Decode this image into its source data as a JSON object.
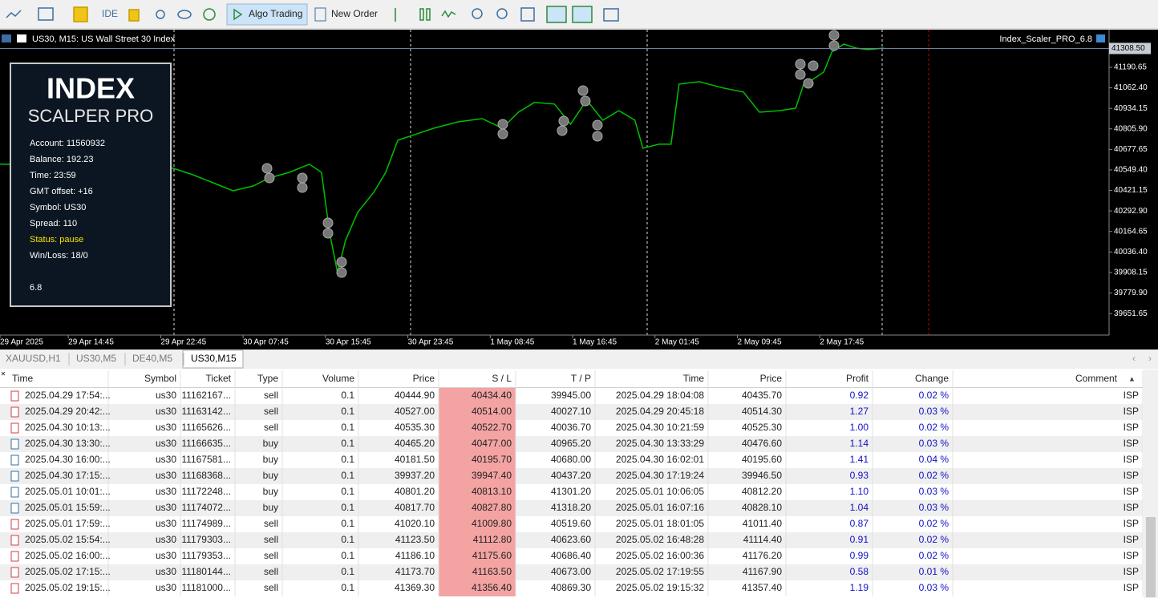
{
  "toolbar": {
    "items": [
      "IDE",
      "Algo Trading",
      "New Order"
    ]
  },
  "chart": {
    "title": "US30, M15:  US Wall Street 30 Index",
    "indicator": "Index_Scaler_PRO_6.8",
    "panel": {
      "logo_line1": "INDEX",
      "logo_line2": "SCALPER PRO",
      "lines": [
        "Account: 11560932",
        "Balance: 192.23",
        "Time: 23:59",
        "GMT offset: +16",
        "Symbol: US30",
        "Spread: 110",
        "Status: pause",
        "Win/Loss: 18/0"
      ],
      "version": "6.8"
    }
  },
  "chart_data": {
    "type": "line",
    "color": "#00c000",
    "x": [
      0,
      21.5,
      24,
      26.5,
      29,
      31.5,
      33.5,
      36,
      38.5,
      40,
      41,
      42,
      43,
      44.5,
      46.5,
      48,
      49.5,
      51,
      54,
      57,
      60,
      62.5,
      64.5,
      66.5,
      69,
      71,
      73,
      75,
      77,
      79,
      80,
      82,
      83.5,
      84.5,
      87,
      90,
      92.5,
      94.5,
      97,
      99,
      100,
      101,
      102.5,
      103.5,
      105,
      106.5,
      108,
      110
    ],
    "values": [
      40585,
      40560,
      40519,
      40469,
      40419,
      40449,
      40499,
      40534,
      40585,
      40534,
      40159,
      39908,
      40109,
      40284,
      40409,
      40534,
      40735,
      40760,
      40810,
      40850,
      40870,
      40810,
      40910,
      40971,
      40961,
      40835,
      40986,
      40860,
      40920,
      40860,
      40685,
      40710,
      40710,
      41086,
      41101,
      41061,
      41036,
      40910,
      40920,
      40935,
      41086,
      41111,
      41161,
      41286,
      41336,
      41311,
      41301,
      41311
    ],
    "xlim": [
      0,
      138
    ],
    "xticks": [
      {
        "value": 0,
        "label": "29 Apr 2025"
      },
      {
        "value": 8.5,
        "label": "29 Apr 14:45"
      },
      {
        "value": 20,
        "label": "29 Apr 22:45"
      },
      {
        "value": 30.25,
        "label": "30 Apr 07:45"
      },
      {
        "value": 40.5,
        "label": "30 Apr 15:45"
      },
      {
        "value": 50.75,
        "label": "30 Apr 23:45"
      },
      {
        "value": 61,
        "label": "1 May 08:45"
      },
      {
        "value": 71.25,
        "label": "1 May 16:45"
      },
      {
        "value": 81.5,
        "label": "2 May 01:45"
      },
      {
        "value": 91.75,
        "label": "2 May 09:45"
      },
      {
        "value": 102,
        "label": "2 May 17:45"
      }
    ],
    "ylim": [
      39517,
      41426
    ],
    "yticks": [
      41190.65,
      {
        "value": 41062.4,
        "label": "41062.40"
      },
      40934.15,
      {
        "value": 40805.9,
        "label": "40805.90"
      },
      40677.65,
      {
        "value": 40549.4,
        "label": "40549.40"
      },
      40421.15,
      {
        "value": 40292.9,
        "label": "40292.90"
      },
      40164.65,
      {
        "value": 40036.4,
        "label": "40036.40"
      },
      39908.15,
      {
        "value": 39779.9,
        "label": "39779.90"
      },
      39651.65
    ],
    "last_price": {
      "value": 41308.5,
      "label": "41308.50"
    }
  },
  "tabs": {
    "items": [
      "XAUUSD,H1",
      "US30,M5",
      "DE40,M5",
      "US30,M15"
    ]
  },
  "table": {
    "columns": [
      "Time",
      "Symbol",
      "Ticket",
      "Type",
      "Volume",
      "Price",
      "S / L",
      "T / P",
      "Time",
      "Price",
      "Profit",
      "Change",
      "Comment"
    ],
    "sort_indicator": "▲",
    "rows": [
      [
        "2025.04.29 17:54:...",
        "us30",
        "11162167...",
        "sell",
        "0.1",
        "40444.90",
        "40434.40",
        "39945.00",
        "2025.04.29 18:04:08",
        "40435.70",
        "0.92",
        "0.02 %",
        "ISP"
      ],
      [
        "2025.04.29 20:42:...",
        "us30",
        "11163142...",
        "sell",
        "0.1",
        "40527.00",
        "40514.00",
        "40027.10",
        "2025.04.29 20:45:18",
        "40514.30",
        "1.27",
        "0.03 %",
        "ISP"
      ],
      [
        "2025.04.30 10:13:...",
        "us30",
        "11165626...",
        "sell",
        "0.1",
        "40535.30",
        "40522.70",
        "40036.70",
        "2025.04.30 10:21:59",
        "40525.30",
        "1.00",
        "0.02 %",
        "ISP"
      ],
      [
        "2025.04.30 13:30:...",
        "us30",
        "11166635...",
        "buy",
        "0.1",
        "40465.20",
        "40477.00",
        "40965.20",
        "2025.04.30 13:33:29",
        "40476.60",
        "1.14",
        "0.03 %",
        "ISP"
      ],
      [
        "2025.04.30 16:00:...",
        "us30",
        "11167581...",
        "buy",
        "0.1",
        "40181.50",
        "40195.70",
        "40680.00",
        "2025.04.30 16:02:01",
        "40195.60",
        "1.41",
        "0.04 %",
        "ISP"
      ],
      [
        "2025.04.30 17:15:...",
        "us30",
        "11168368...",
        "buy",
        "0.1",
        "39937.20",
        "39947.40",
        "40437.20",
        "2025.04.30 17:19:24",
        "39946.50",
        "0.93",
        "0.02 %",
        "ISP"
      ],
      [
        "2025.05.01 10:01:...",
        "us30",
        "11172248...",
        "buy",
        "0.1",
        "40801.20",
        "40813.10",
        "41301.20",
        "2025.05.01 10:06:05",
        "40812.20",
        "1.10",
        "0.03 %",
        "ISP"
      ],
      [
        "2025.05.01 15:59:...",
        "us30",
        "11174072...",
        "buy",
        "0.1",
        "40817.70",
        "40827.80",
        "41318.20",
        "2025.05.01 16:07:16",
        "40828.10",
        "1.04",
        "0.03 %",
        "ISP"
      ],
      [
        "2025.05.01 17:59:...",
        "us30",
        "11174989...",
        "sell",
        "0.1",
        "41020.10",
        "41009.80",
        "40519.60",
        "2025.05.01 18:01:05",
        "41011.40",
        "0.87",
        "0.02 %",
        "ISP"
      ],
      [
        "2025.05.02 15:54:...",
        "us30",
        "11179303...",
        "sell",
        "0.1",
        "41123.50",
        "41112.80",
        "40623.60",
        "2025.05.02 16:48:28",
        "41114.40",
        "0.91",
        "0.02 %",
        "ISP"
      ],
      [
        "2025.05.02 16:00:...",
        "us30",
        "11179353...",
        "sell",
        "0.1",
        "41186.10",
        "41175.60",
        "40686.40",
        "2025.05.02 16:00:36",
        "41176.20",
        "0.99",
        "0.02 %",
        "ISP"
      ],
      [
        "2025.05.02 17:15:...",
        "us30",
        "11180144...",
        "sell",
        "0.1",
        "41173.70",
        "41163.50",
        "40673.00",
        "2025.05.02 17:19:55",
        "41167.90",
        "0.58",
        "0.01 %",
        "ISP"
      ],
      [
        "2025.05.02 19:15:...",
        "us30",
        "11181000...",
        "sell",
        "0.1",
        "41369.30",
        "41356.40",
        "40869.30",
        "2025.05.02 19:15:32",
        "41357.40",
        "1.19",
        "0.03 %",
        "ISP"
      ]
    ]
  }
}
